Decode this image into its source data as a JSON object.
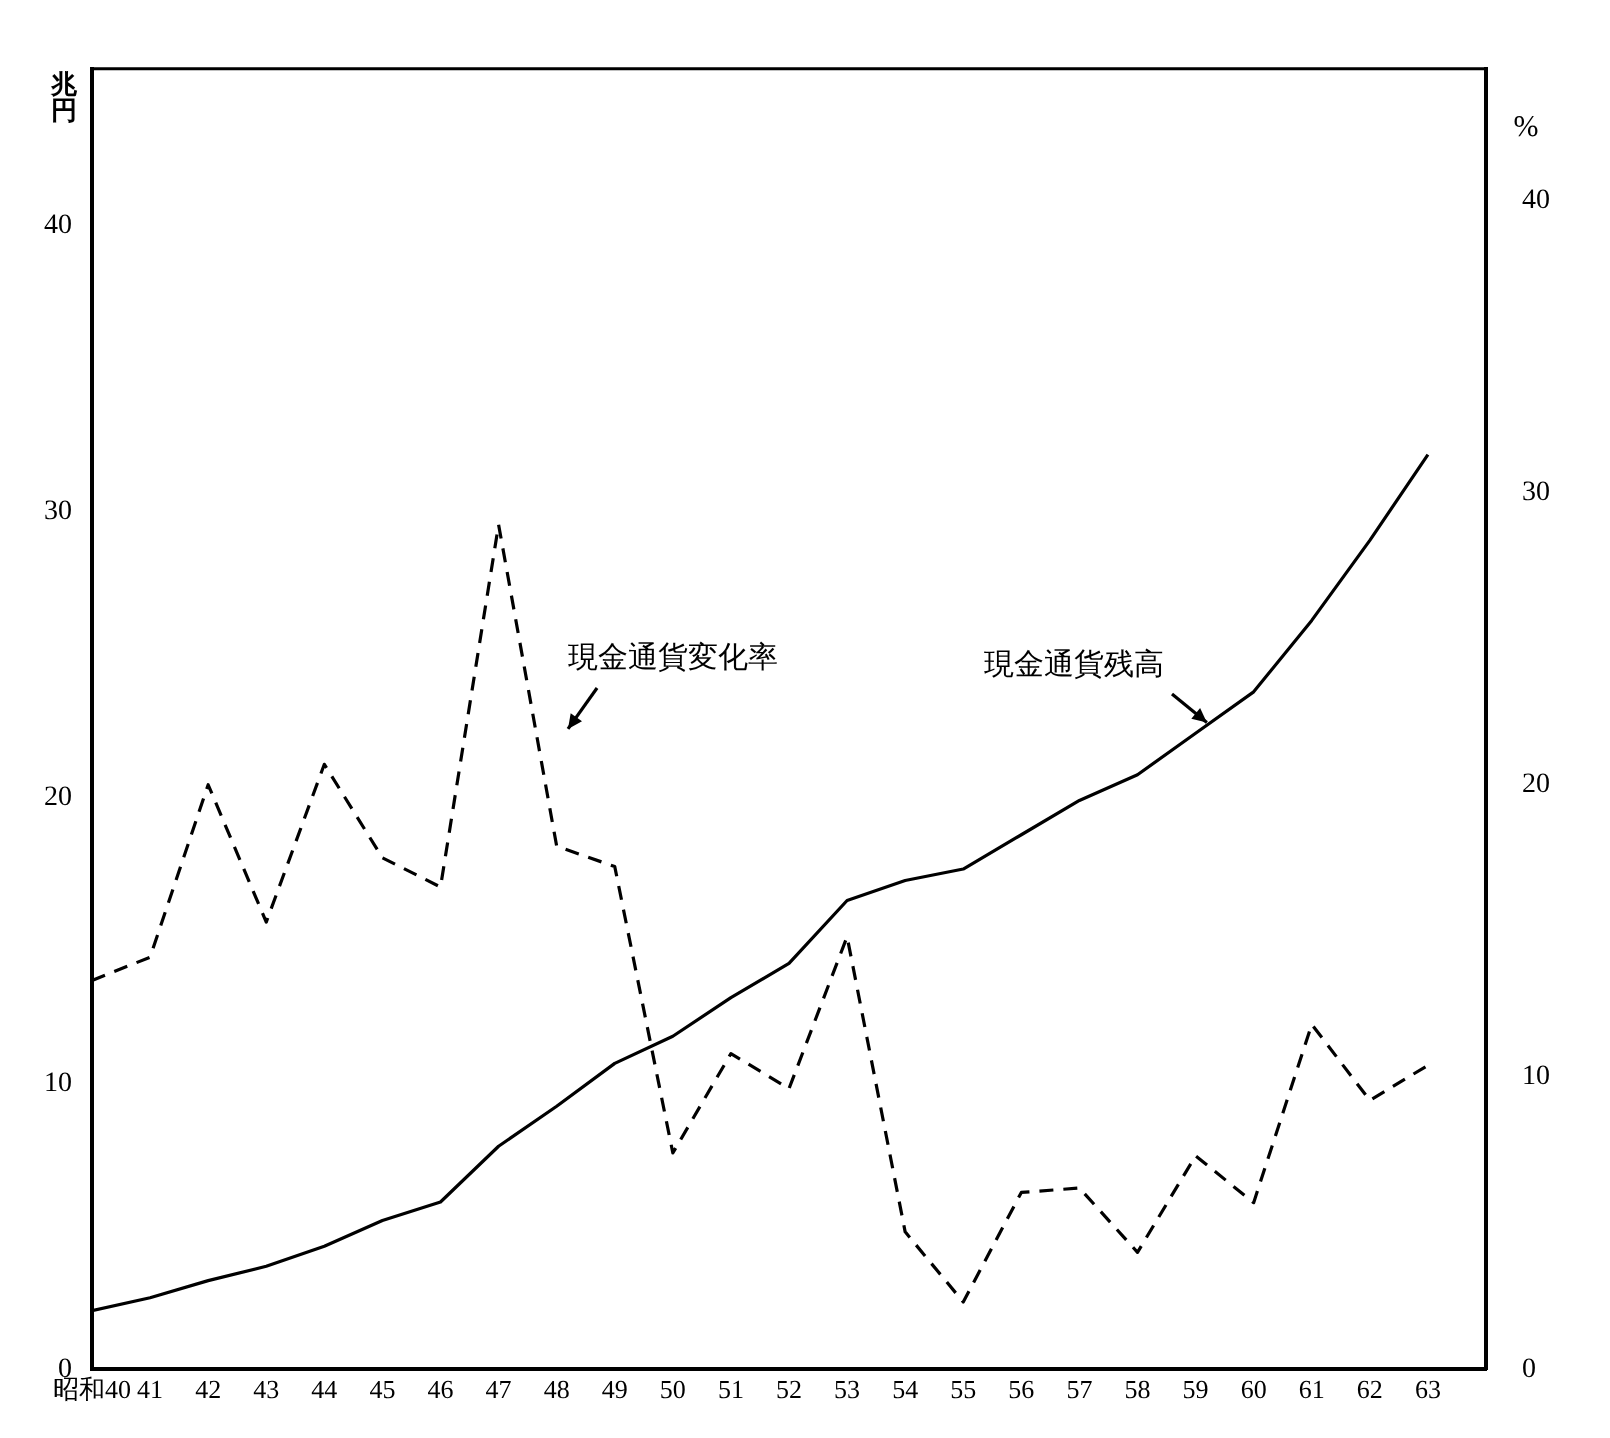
{
  "chart_data": {
    "type": "line",
    "ylabel": "兆円",
    "y2label": "%",
    "x": [
      40,
      41,
      42,
      43,
      44,
      45,
      46,
      47,
      48,
      49,
      50,
      51,
      52,
      53,
      54,
      55,
      56,
      57,
      58,
      59,
      60,
      61,
      62,
      63
    ],
    "xlim": [
      40,
      64
    ],
    "xticks": [
      {
        "value": 40,
        "label": "昭和40"
      },
      41,
      42,
      43,
      44,
      45,
      46,
      47,
      48,
      49,
      50,
      51,
      52,
      53,
      54,
      55,
      56,
      57,
      58,
      59,
      60,
      61,
      62,
      63
    ],
    "ylim": [
      0,
      45.5
    ],
    "yticks": [
      0,
      10,
      20,
      30,
      40
    ],
    "y2lim": [
      0,
      44.5
    ],
    "y2ticks": [
      0,
      10,
      20,
      30,
      40
    ],
    "series": [
      {
        "name": "現金通貨残高",
        "color": "#000000",
        "line_style": "solid",
        "values": [
          2.05,
          2.5,
          3.1,
          3.6,
          4.3,
          5.2,
          5.85,
          7.8,
          9.2,
          10.7,
          11.65,
          13.0,
          14.2,
          16.4,
          17.1,
          17.5,
          18.7,
          19.9,
          20.8,
          22.25,
          23.7,
          26.2,
          29.0,
          32.0
        ]
      },
      {
        "name": "現金通貨変化率",
        "color": "#000000",
        "line_style": "dashed",
        "axis": "y2",
        "values": [
          13.3,
          14.1,
          20.0,
          15.3,
          20.7,
          17.5,
          16.5,
          28.9,
          17.9,
          17.2,
          7.4,
          10.8,
          9.6,
          14.8,
          4.7,
          2.3,
          6.05,
          6.2,
          4.0,
          7.3,
          5.7,
          11.8,
          9.2,
          10.4
        ]
      }
    ],
    "marker": "none",
    "grid": false,
    "legend": false
  }
}
